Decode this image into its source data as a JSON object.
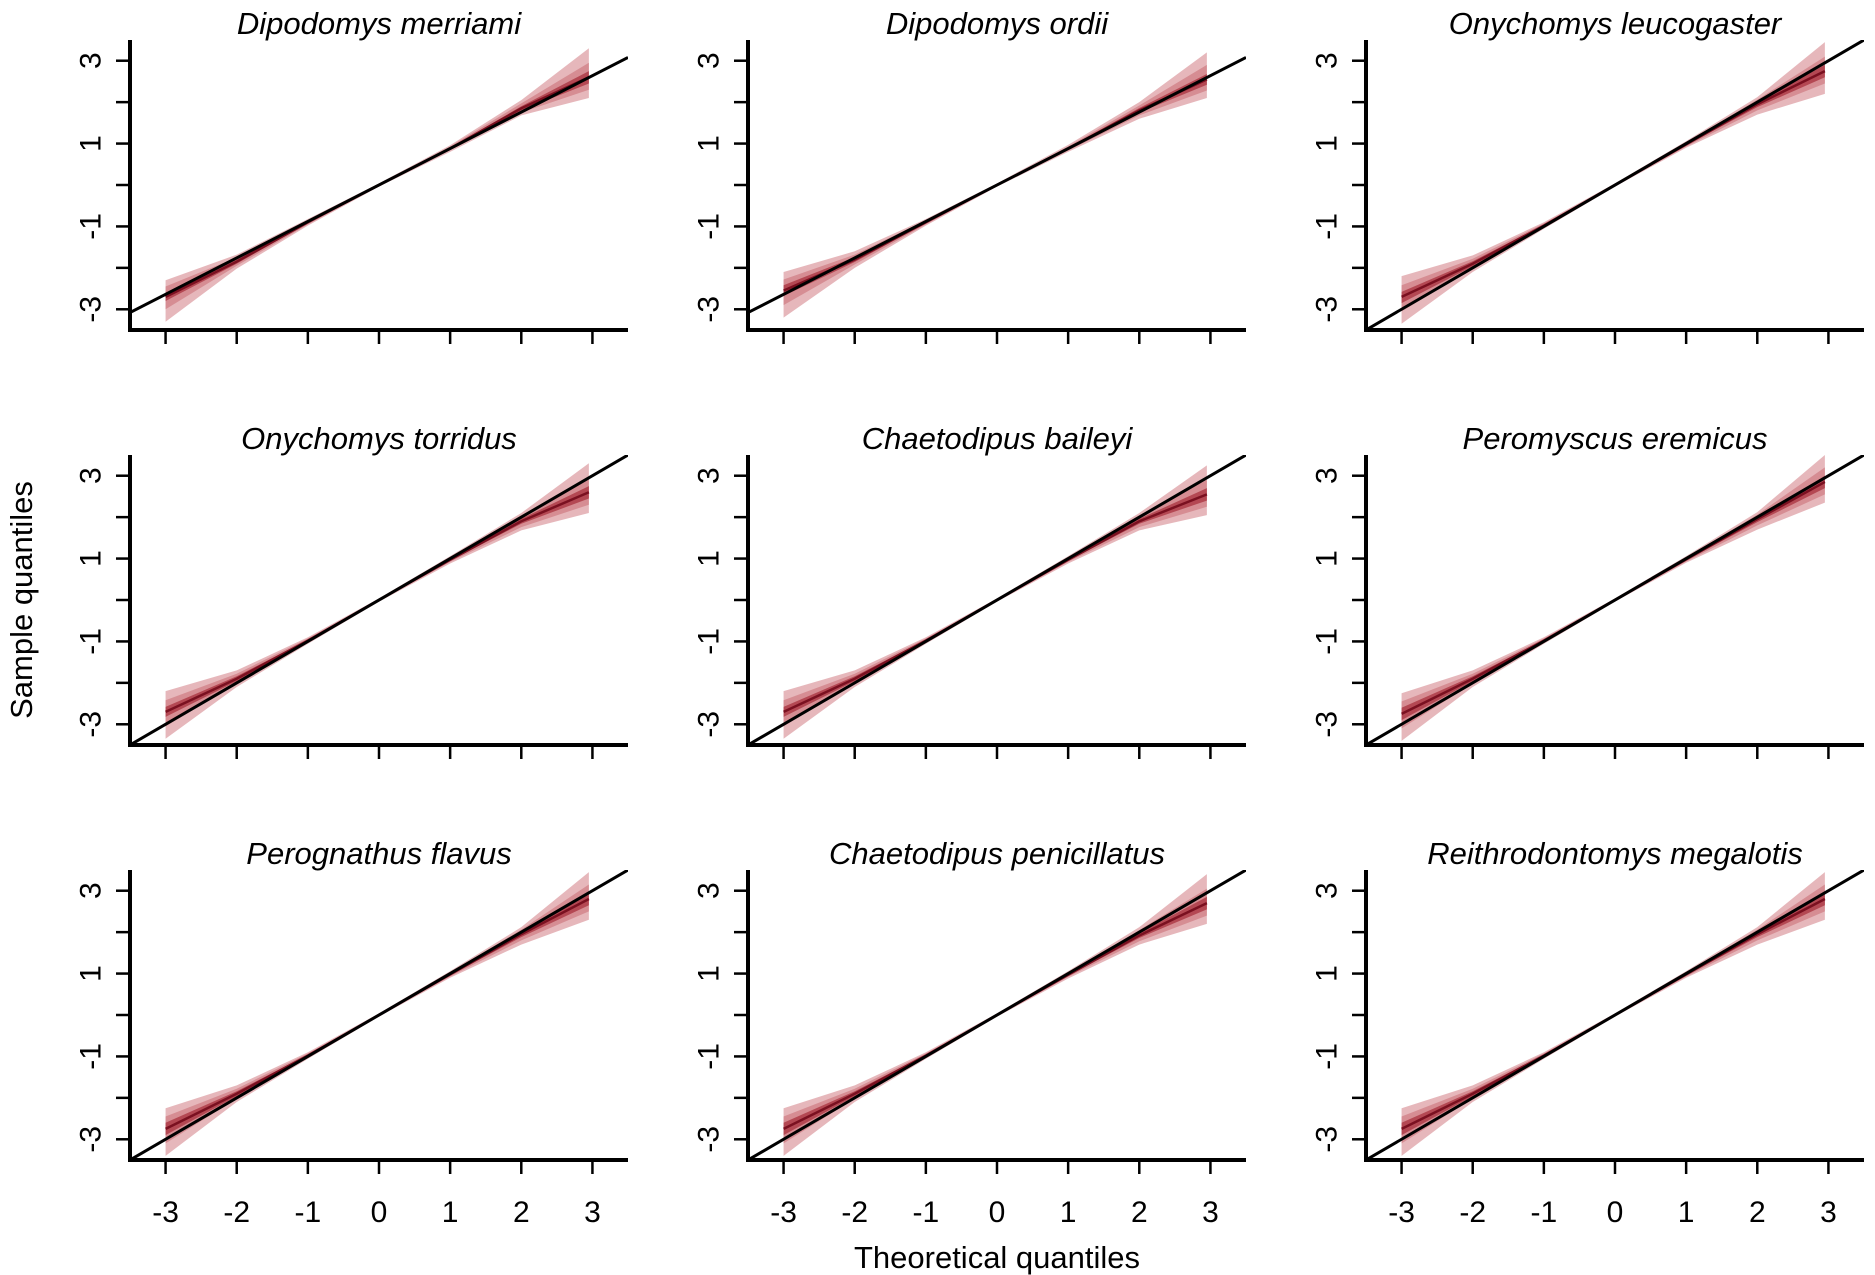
{
  "chart_data": {
    "type": "qq-panels",
    "layout": {
      "rows": 3,
      "cols": 3
    },
    "xlabel": "Theoretical quantiles",
    "ylabel": "Sample quantiles",
    "xlim": [
      -3.5,
      3.5
    ],
    "ylim": [
      -3.5,
      3.5
    ],
    "x_ticks": [
      -3,
      -2,
      -1,
      0,
      1,
      2,
      3
    ],
    "y_ticks": [
      -3,
      -2,
      -1,
      0,
      1,
      2,
      3
    ],
    "y_tick_labels_shown": [
      "-3",
      "-1",
      "1",
      "3"
    ],
    "reference_line": {
      "slope": 1,
      "intercept": 0,
      "color": "#000000"
    },
    "band_colors": {
      "outer": "#e2aaaf",
      "middle": "#cf7a82",
      "inner": "#a8323e",
      "median": "#7a1020"
    },
    "grid": false,
    "panels": [
      {
        "title": "Dipodomys merriami",
        "ref_slope": 0.88,
        "band_x": [
          -3,
          -2,
          -1,
          0,
          1,
          2,
          2.95
        ],
        "median": [
          -2.7,
          -1.85,
          -0.9,
          0,
          0.88,
          1.85,
          2.6
        ],
        "inner": [
          [
            -2.8,
            -2.6
          ],
          [
            -1.9,
            -1.8
          ],
          [
            -0.92,
            -0.88
          ],
          [
            0,
            0
          ],
          [
            0.86,
            0.9
          ],
          [
            1.8,
            1.9
          ],
          [
            2.45,
            2.75
          ]
        ],
        "middle": [
          [
            -3.0,
            -2.45
          ],
          [
            -1.95,
            -1.75
          ],
          [
            -0.95,
            -0.85
          ],
          [
            -0.02,
            0.02
          ],
          [
            0.84,
            0.93
          ],
          [
            1.75,
            1.97
          ],
          [
            2.3,
            2.95
          ]
        ],
        "outer": [
          [
            -3.3,
            -2.3
          ],
          [
            -2.02,
            -1.68
          ],
          [
            -0.98,
            -0.82
          ],
          [
            -0.04,
            0.04
          ],
          [
            0.8,
            0.96
          ],
          [
            1.68,
            2.05
          ],
          [
            2.1,
            3.3
          ]
        ]
      },
      {
        "title": "Dipodomys ordii",
        "ref_slope": 0.88,
        "band_x": [
          -3,
          -2,
          -1,
          0,
          1,
          2,
          2.95
        ],
        "median": [
          -2.55,
          -1.8,
          -0.9,
          0,
          0.88,
          1.8,
          2.55
        ],
        "inner": [
          [
            -2.68,
            -2.42
          ],
          [
            -1.86,
            -1.74
          ],
          [
            -0.92,
            -0.88
          ],
          [
            0,
            0
          ],
          [
            0.86,
            0.9
          ],
          [
            1.75,
            1.86
          ],
          [
            2.42,
            2.68
          ]
        ],
        "middle": [
          [
            -2.9,
            -2.28
          ],
          [
            -1.92,
            -1.68
          ],
          [
            -0.95,
            -0.85
          ],
          [
            -0.02,
            0.02
          ],
          [
            0.83,
            0.93
          ],
          [
            1.68,
            1.92
          ],
          [
            2.28,
            2.9
          ]
        ],
        "outer": [
          [
            -3.2,
            -2.1
          ],
          [
            -2.0,
            -1.6
          ],
          [
            -0.98,
            -0.82
          ],
          [
            -0.04,
            0.04
          ],
          [
            0.8,
            0.97
          ],
          [
            1.6,
            2.0
          ],
          [
            2.1,
            3.2
          ]
        ]
      },
      {
        "title": "Onychomys leucogaster",
        "ref_slope": 1.0,
        "band_x": [
          -3,
          -2,
          -1,
          0,
          1,
          2,
          2.95
        ],
        "median": [
          -2.7,
          -1.9,
          -0.98,
          0,
          0.98,
          1.95,
          2.75
        ],
        "inner": [
          [
            -2.85,
            -2.58
          ],
          [
            -1.96,
            -1.84
          ],
          [
            -1.0,
            -0.96
          ],
          [
            0,
            0
          ],
          [
            0.96,
            1.0
          ],
          [
            1.88,
            2.0
          ],
          [
            2.6,
            2.9
          ]
        ],
        "middle": [
          [
            -3.05,
            -2.42
          ],
          [
            -2.02,
            -1.78
          ],
          [
            -1.03,
            -0.93
          ],
          [
            -0.02,
            0.02
          ],
          [
            0.93,
            1.03
          ],
          [
            1.8,
            2.06
          ],
          [
            2.45,
            3.1
          ]
        ],
        "outer": [
          [
            -3.35,
            -2.2
          ],
          [
            -2.1,
            -1.7
          ],
          [
            -1.06,
            -0.9
          ],
          [
            -0.04,
            0.04
          ],
          [
            0.9,
            1.06
          ],
          [
            1.7,
            2.12
          ],
          [
            2.2,
            3.45
          ]
        ]
      },
      {
        "title": "Onychomys torridus",
        "ref_slope": 1.0,
        "band_x": [
          -3,
          -2,
          -1,
          0,
          1,
          2,
          2.95
        ],
        "median": [
          -2.7,
          -1.9,
          -0.98,
          0,
          0.97,
          1.9,
          2.6
        ],
        "inner": [
          [
            -2.82,
            -2.58
          ],
          [
            -1.96,
            -1.84
          ],
          [
            -1.0,
            -0.96
          ],
          [
            0,
            0
          ],
          [
            0.95,
            0.99
          ],
          [
            1.84,
            1.96
          ],
          [
            2.45,
            2.75
          ]
        ],
        "middle": [
          [
            -3.05,
            -2.42
          ],
          [
            -2.02,
            -1.78
          ],
          [
            -1.03,
            -0.93
          ],
          [
            -0.02,
            0.02
          ],
          [
            0.92,
            1.02
          ],
          [
            1.76,
            2.03
          ],
          [
            2.3,
            2.95
          ]
        ],
        "outer": [
          [
            -3.35,
            -2.2
          ],
          [
            -2.1,
            -1.7
          ],
          [
            -1.06,
            -0.9
          ],
          [
            -0.04,
            0.04
          ],
          [
            0.88,
            1.06
          ],
          [
            1.68,
            2.1
          ],
          [
            2.1,
            3.3
          ]
        ]
      },
      {
        "title": "Chaetodipus baileyi",
        "ref_slope": 1.0,
        "band_x": [
          -3,
          -2,
          -1,
          0,
          1,
          2,
          2.95
        ],
        "median": [
          -2.7,
          -1.9,
          -0.98,
          0,
          0.97,
          1.9,
          2.55
        ],
        "inner": [
          [
            -2.82,
            -2.58
          ],
          [
            -1.96,
            -1.84
          ],
          [
            -1.0,
            -0.96
          ],
          [
            0,
            0
          ],
          [
            0.95,
            0.99
          ],
          [
            1.84,
            1.96
          ],
          [
            2.4,
            2.7
          ]
        ],
        "middle": [
          [
            -3.05,
            -2.42
          ],
          [
            -2.02,
            -1.78
          ],
          [
            -1.03,
            -0.93
          ],
          [
            -0.02,
            0.02
          ],
          [
            0.92,
            1.02
          ],
          [
            1.76,
            2.03
          ],
          [
            2.25,
            2.9
          ]
        ],
        "outer": [
          [
            -3.35,
            -2.2
          ],
          [
            -2.1,
            -1.7
          ],
          [
            -1.06,
            -0.9
          ],
          [
            -0.04,
            0.04
          ],
          [
            0.88,
            1.06
          ],
          [
            1.68,
            2.1
          ],
          [
            2.05,
            3.25
          ]
        ]
      },
      {
        "title": "Peromyscus eremicus",
        "ref_slope": 1.0,
        "band_x": [
          -3,
          -2,
          -1,
          0,
          1,
          2,
          2.95
        ],
        "median": [
          -2.75,
          -1.9,
          -0.98,
          0,
          0.98,
          1.95,
          2.85
        ],
        "inner": [
          [
            -2.9,
            -2.6
          ],
          [
            -1.96,
            -1.84
          ],
          [
            -1.0,
            -0.96
          ],
          [
            0,
            0
          ],
          [
            0.96,
            1.0
          ],
          [
            1.88,
            2.0
          ],
          [
            2.7,
            3.0
          ]
        ],
        "middle": [
          [
            -3.1,
            -2.45
          ],
          [
            -2.02,
            -1.78
          ],
          [
            -1.03,
            -0.93
          ],
          [
            -0.02,
            0.02
          ],
          [
            0.93,
            1.03
          ],
          [
            1.8,
            2.06
          ],
          [
            2.55,
            3.2
          ]
        ],
        "outer": [
          [
            -3.4,
            -2.25
          ],
          [
            -2.1,
            -1.7
          ],
          [
            -1.06,
            -0.9
          ],
          [
            -0.04,
            0.04
          ],
          [
            0.9,
            1.06
          ],
          [
            1.7,
            2.12
          ],
          [
            2.35,
            3.5
          ]
        ]
      },
      {
        "title": "Perognathus flavus",
        "ref_slope": 1.0,
        "band_x": [
          -3,
          -2,
          -1,
          0,
          1,
          2,
          2.95
        ],
        "median": [
          -2.75,
          -1.9,
          -0.98,
          0,
          0.98,
          1.95,
          2.8
        ],
        "inner": [
          [
            -2.9,
            -2.6
          ],
          [
            -1.96,
            -1.84
          ],
          [
            -1.0,
            -0.96
          ],
          [
            0,
            0
          ],
          [
            0.96,
            1.0
          ],
          [
            1.88,
            2.0
          ],
          [
            2.65,
            2.95
          ]
        ],
        "middle": [
          [
            -3.1,
            -2.45
          ],
          [
            -2.02,
            -1.78
          ],
          [
            -1.03,
            -0.93
          ],
          [
            -0.02,
            0.02
          ],
          [
            0.93,
            1.03
          ],
          [
            1.8,
            2.06
          ],
          [
            2.5,
            3.15
          ]
        ],
        "outer": [
          [
            -3.4,
            -2.25
          ],
          [
            -2.1,
            -1.7
          ],
          [
            -1.06,
            -0.9
          ],
          [
            -0.04,
            0.04
          ],
          [
            0.9,
            1.06
          ],
          [
            1.7,
            2.12
          ],
          [
            2.3,
            3.45
          ]
        ]
      },
      {
        "title": "Chaetodipus penicillatus",
        "ref_slope": 1.0,
        "band_x": [
          -3,
          -2,
          -1,
          0,
          1,
          2,
          2.95
        ],
        "median": [
          -2.75,
          -1.9,
          -0.98,
          0,
          0.97,
          1.92,
          2.7
        ],
        "inner": [
          [
            -2.9,
            -2.6
          ],
          [
            -1.96,
            -1.84
          ],
          [
            -1.0,
            -0.96
          ],
          [
            0,
            0
          ],
          [
            0.95,
            0.99
          ],
          [
            1.86,
            1.98
          ],
          [
            2.55,
            2.85
          ]
        ],
        "middle": [
          [
            -3.1,
            -2.45
          ],
          [
            -2.02,
            -1.78
          ],
          [
            -1.03,
            -0.93
          ],
          [
            -0.02,
            0.02
          ],
          [
            0.92,
            1.02
          ],
          [
            1.78,
            2.05
          ],
          [
            2.4,
            3.05
          ]
        ],
        "outer": [
          [
            -3.4,
            -2.25
          ],
          [
            -2.1,
            -1.7
          ],
          [
            -1.06,
            -0.9
          ],
          [
            -0.04,
            0.04
          ],
          [
            0.88,
            1.06
          ],
          [
            1.7,
            2.12
          ],
          [
            2.2,
            3.4
          ]
        ]
      },
      {
        "title": "Reithrodontomys megalotis",
        "ref_slope": 1.0,
        "band_x": [
          -3,
          -2,
          -1,
          0,
          1,
          2,
          2.95
        ],
        "median": [
          -2.75,
          -1.9,
          -0.98,
          0,
          0.98,
          1.95,
          2.8
        ],
        "inner": [
          [
            -2.9,
            -2.6
          ],
          [
            -1.96,
            -1.84
          ],
          [
            -1.0,
            -0.96
          ],
          [
            0,
            0
          ],
          [
            0.96,
            1.0
          ],
          [
            1.88,
            2.0
          ],
          [
            2.65,
            2.95
          ]
        ],
        "middle": [
          [
            -3.1,
            -2.45
          ],
          [
            -2.02,
            -1.78
          ],
          [
            -1.03,
            -0.93
          ],
          [
            -0.02,
            0.02
          ],
          [
            0.93,
            1.03
          ],
          [
            1.8,
            2.06
          ],
          [
            2.5,
            3.15
          ]
        ],
        "outer": [
          [
            -3.4,
            -2.25
          ],
          [
            -2.1,
            -1.7
          ],
          [
            -1.06,
            -0.9
          ],
          [
            -0.04,
            0.04
          ],
          [
            0.9,
            1.06
          ],
          [
            1.7,
            2.12
          ],
          [
            2.3,
            3.45
          ]
        ]
      }
    ]
  }
}
